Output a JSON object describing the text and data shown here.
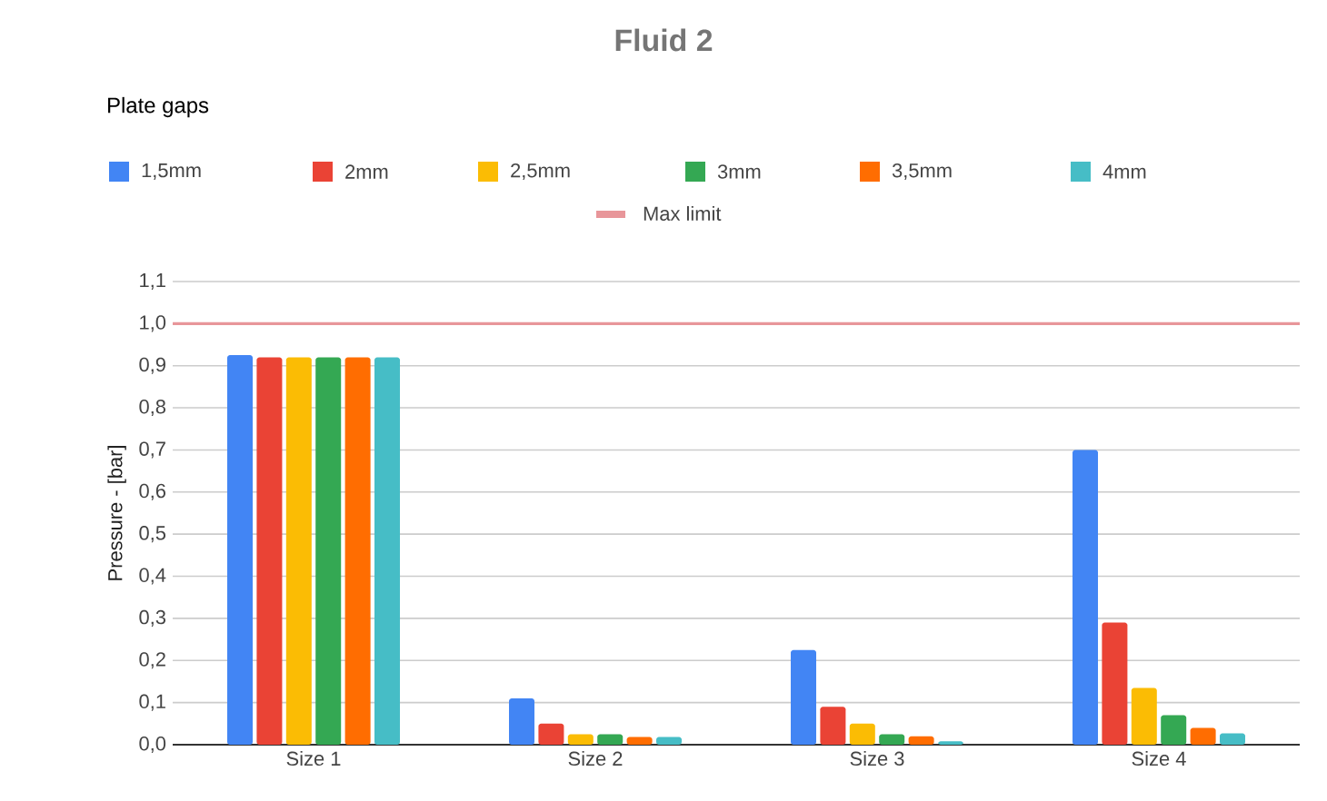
{
  "chart_data": {
    "type": "bar",
    "title": "Fluid 2",
    "legend_title": "Plate gaps",
    "ylabel": "Pressure - [bar]",
    "categories": [
      "Size 1",
      "Size 2",
      "Size 3",
      "Size 4"
    ],
    "series": [
      {
        "name": "1,5mm",
        "color": "#4285f4",
        "values": [
          0.925,
          0.11,
          0.225,
          0.7
        ]
      },
      {
        "name": "2mm",
        "color": "#ea4335",
        "values": [
          0.92,
          0.05,
          0.09,
          0.29
        ]
      },
      {
        "name": "2,5mm",
        "color": "#fbbc04",
        "values": [
          0.92,
          0.025,
          0.05,
          0.135
        ]
      },
      {
        "name": "3mm",
        "color": "#34a853",
        "values": [
          0.92,
          0.025,
          0.025,
          0.07
        ]
      },
      {
        "name": "3,5mm",
        "color": "#ff6d01",
        "values": [
          0.92,
          0.018,
          0.02,
          0.04
        ]
      },
      {
        "name": "4mm",
        "color": "#46bdc6",
        "values": [
          0.92,
          0.018,
          0.008,
          0.027
        ]
      }
    ],
    "ref_lines": [
      {
        "axis": "y",
        "value": 1.0,
        "label": "Max limit",
        "color": "#e8969a"
      }
    ],
    "ylim": [
      0,
      1.1
    ],
    "yticks": [
      {
        "value": 0,
        "label": "0,0"
      },
      {
        "value": 0.1,
        "label": "0,1"
      },
      {
        "value": 0.2,
        "label": "0,2"
      },
      {
        "value": 0.3,
        "label": "0,3"
      },
      {
        "value": 0.4,
        "label": "0,4"
      },
      {
        "value": 0.5,
        "label": "0,5"
      },
      {
        "value": 0.6,
        "label": "0,6"
      },
      {
        "value": 0.7,
        "label": "0,7"
      },
      {
        "value": 0.8,
        "label": "0,8"
      },
      {
        "value": 0.9,
        "label": "0,9"
      },
      {
        "value": 1.0,
        "label": "1,0"
      },
      {
        "value": 1.1,
        "label": "1,1"
      }
    ],
    "grid": "y",
    "legend": "top"
  }
}
